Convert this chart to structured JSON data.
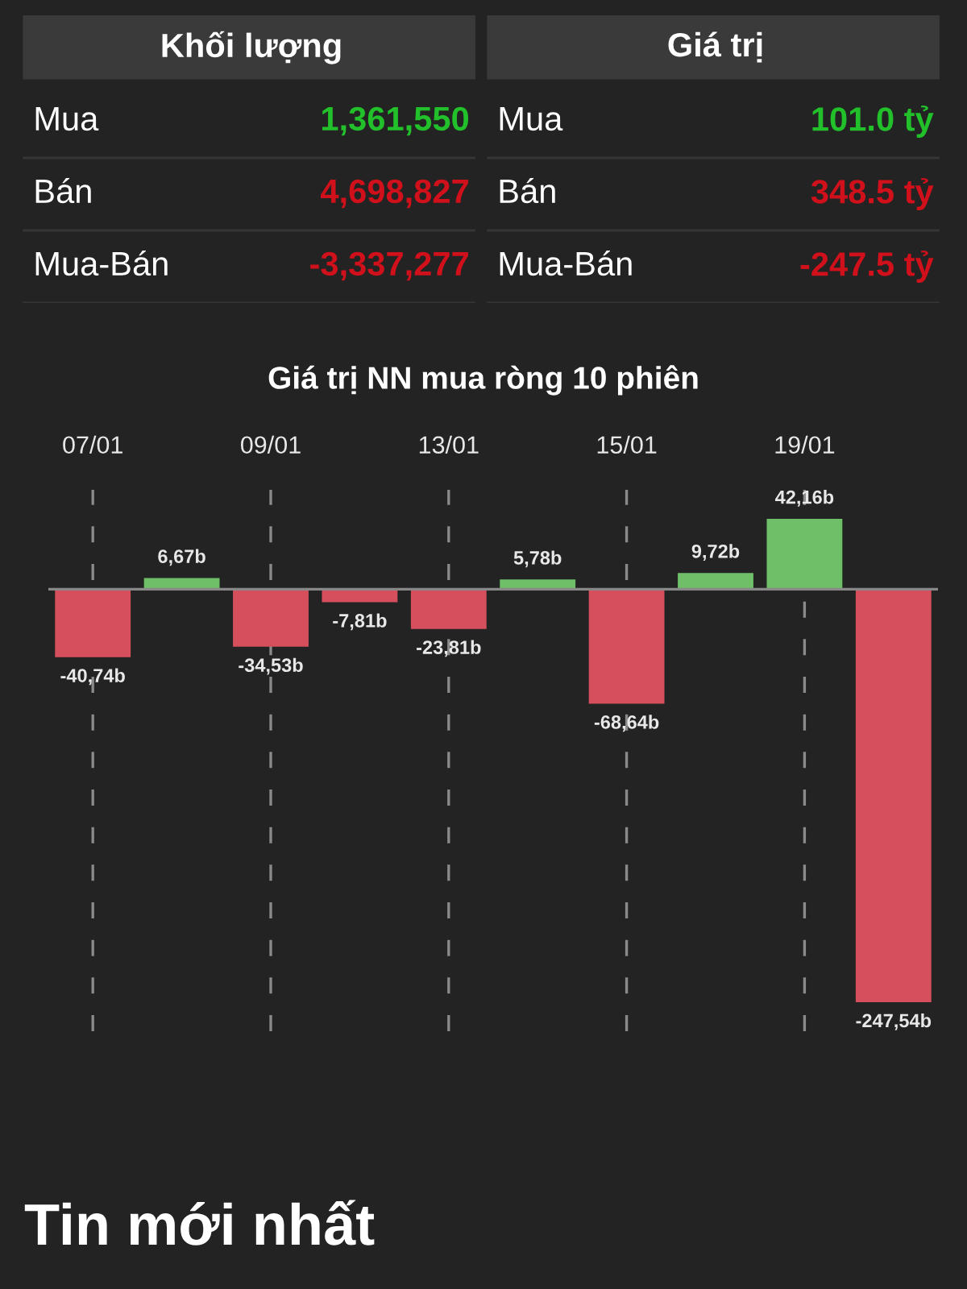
{
  "chart_data": [
    {
      "type": "other",
      "annotations": [
        "Khối lượng",
        "Giá trị",
        "Mua",
        "1,361,550",
        "Mua",
        "101.0 tỷ",
        "Bán",
        "4,698,827",
        "Bán",
        "348.5 tỷ",
        "Mua-Bán",
        "-3,337,277",
        "Mua-Bán",
        "-247.5 tỷ"
      ],
      "colors": [
        "#ffffff",
        "#ffffff",
        "#ffffff",
        "#22c02a",
        "#ffffff",
        "#22c02a",
        "#ffffff",
        "#d0101a",
        "#ffffff",
        "#d0101a",
        "#ffffff",
        "#d0101a",
        "#ffffff",
        "#d0101a"
      ]
    },
    {
      "type": "bar",
      "title": "Giá trị NN mua ròng 10 phiên",
      "categories": [
        "07/01",
        null,
        "09/01",
        null,
        "13/01",
        null,
        "15/01",
        null,
        "19/01",
        null
      ],
      "values": [
        -40.74,
        6.67,
        -34.53,
        -7.81,
        -23.81,
        5.78,
        -68.64,
        9.72,
        42.16,
        -247.54
      ],
      "colors": [
        "#d64f5c",
        "#6fbf69",
        "#d64f5c",
        "#d64f5c",
        "#d64f5c",
        "#6fbf69",
        "#d64f5c",
        "#6fbf69",
        "#6fbf69",
        "#d64f5c"
      ],
      "value_labels": [
        "-40,74b",
        "6,67b",
        "-34,53b",
        "-7,81b",
        "-23,81b",
        "5,78b",
        "-68,64b",
        "9,72b",
        "42,16b",
        "-247,54b"
      ],
      "grid": "x",
      "legend": false,
      "annotations": [
        "Tin mới nhất"
      ]
    }
  ]
}
